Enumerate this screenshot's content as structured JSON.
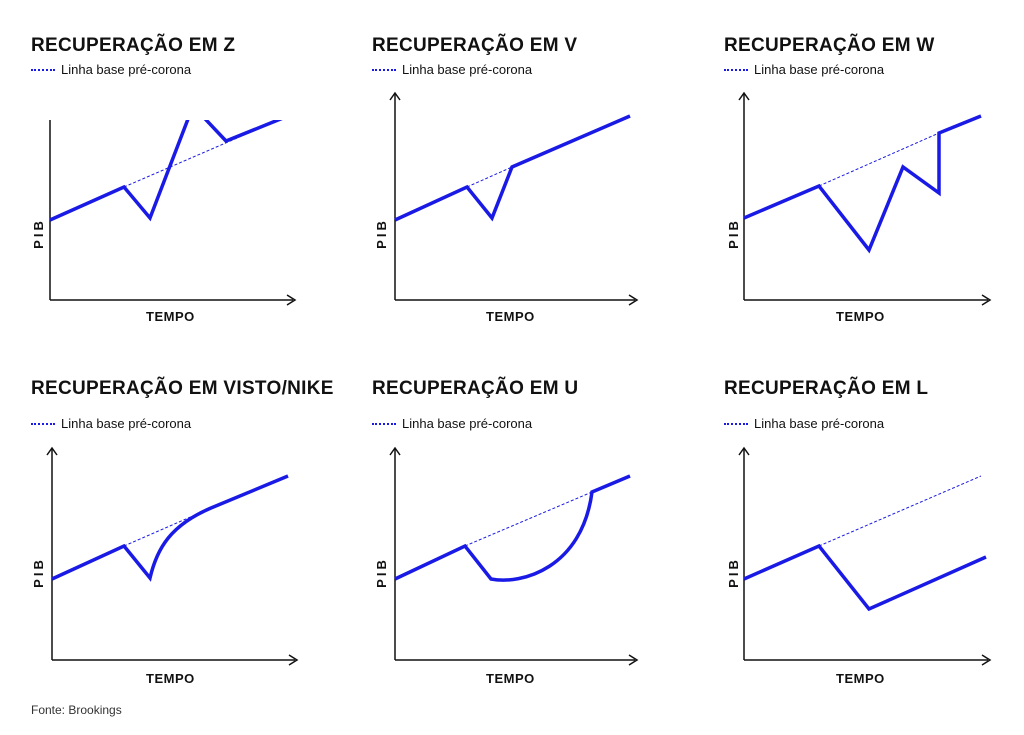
{
  "colors": {
    "series": "#1a1ae6",
    "axis": "#111111"
  },
  "legend_label": "Linha base pré-corona",
  "axis_y": "PIB",
  "axis_x": "TEMPO",
  "source": "Fonte: Brookings",
  "panels": [
    {
      "title": "RECUPERAÇÃO EM Z"
    },
    {
      "title": "RECUPERAÇÃO EM V"
    },
    {
      "title": "RECUPERAÇÃO EM W"
    },
    {
      "title": "RECUPERAÇÃO EM VISTO/NIKE"
    },
    {
      "title": "RECUPERAÇÃO EM U"
    },
    {
      "title": "RECUPERAÇÃO EM L"
    }
  ]
}
